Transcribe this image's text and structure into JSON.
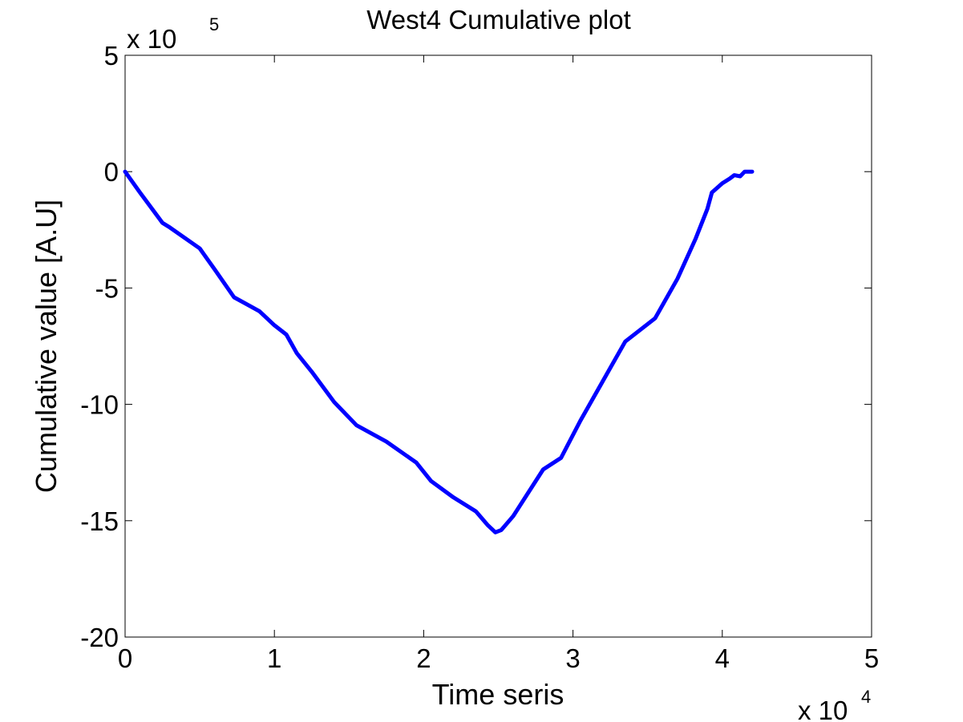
{
  "chart_data": {
    "type": "line",
    "title": "West4 Cumulative plot",
    "xlabel": "Time seris",
    "ylabel": "Cumulative value [A.U]",
    "x_multiplier": {
      "prefix": "x 10",
      "exponent": "4"
    },
    "y_multiplier": {
      "prefix": "x 10",
      "exponent": "5"
    },
    "xlim": [
      0,
      5
    ],
    "ylim": [
      -20,
      5
    ],
    "x_ticks": [
      0,
      1,
      2,
      3,
      4,
      5
    ],
    "x_tick_labels": [
      "0",
      "1",
      "2",
      "3",
      "4",
      "5"
    ],
    "y_ticks": [
      5,
      0,
      -5,
      -10,
      -15,
      -20
    ],
    "y_tick_labels": [
      "5",
      "0",
      "-5",
      "-10",
      "-15",
      "-20"
    ],
    "grid": false,
    "series": [
      {
        "color": "#0000ff",
        "x": [
          0,
          0.1,
          0.25,
          0.3,
          0.5,
          0.6,
          0.73,
          0.9,
          1.0,
          1.08,
          1.15,
          1.25,
          1.4,
          1.55,
          1.75,
          1.95,
          2.05,
          2.2,
          2.35,
          2.43,
          2.48,
          2.52,
          2.6,
          2.7,
          2.8,
          2.92,
          3.05,
          3.2,
          3.35,
          3.55,
          3.7,
          3.82,
          3.9,
          3.93,
          4.0,
          4.05,
          4.08,
          4.12,
          4.15,
          4.2
        ],
        "values": [
          0,
          -0.9,
          -2.2,
          -2.4,
          -3.3,
          -4.2,
          -5.4,
          -6.0,
          -6.6,
          -7.0,
          -7.8,
          -8.6,
          -9.9,
          -10.9,
          -11.6,
          -12.5,
          -13.3,
          -14.0,
          -14.6,
          -15.2,
          -15.5,
          -15.4,
          -14.8,
          -13.8,
          -12.8,
          -12.3,
          -10.7,
          -9.0,
          -7.3,
          -6.3,
          -4.6,
          -2.9,
          -1.6,
          -0.9,
          -0.5,
          -0.3,
          -0.15,
          -0.2,
          0,
          0
        ]
      }
    ]
  }
}
